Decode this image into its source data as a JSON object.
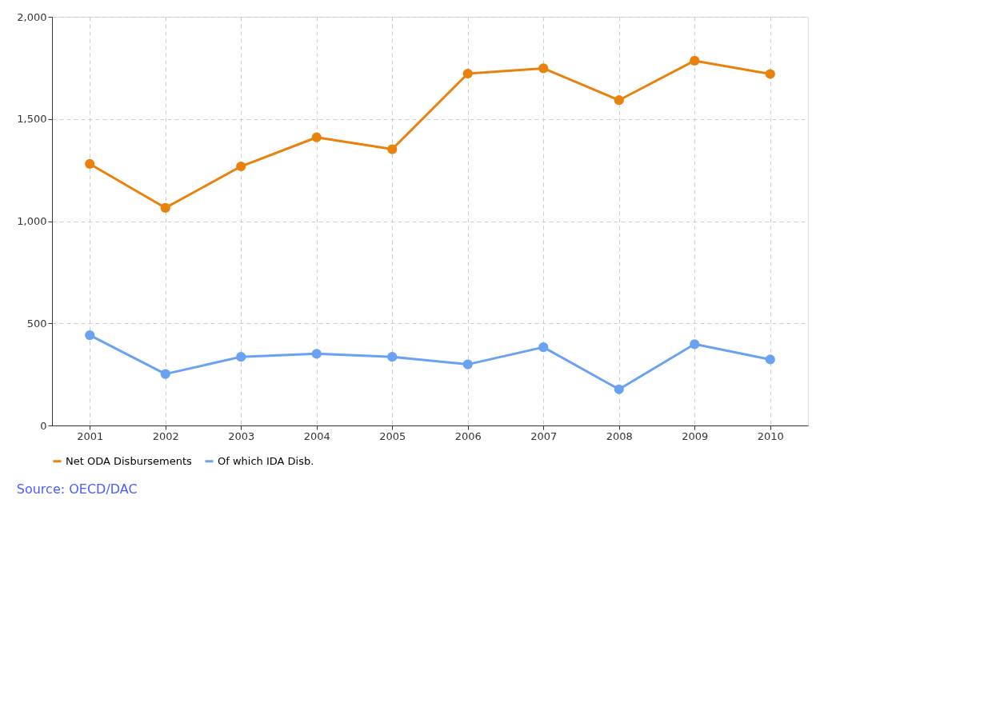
{
  "chart_data": {
    "type": "line",
    "categories": [
      "2001",
      "2002",
      "2003",
      "2004",
      "2005",
      "2006",
      "2007",
      "2008",
      "2009",
      "2010"
    ],
    "series": [
      {
        "name": "Net ODA Disbursements",
        "color": "#e8820c",
        "values": [
          1280,
          1065,
          1268,
          1410,
          1352,
          1722,
          1748,
          1592,
          1785,
          1720
        ]
      },
      {
        "name": "Of which IDA Disb.",
        "color": "#6aa1f0",
        "values": [
          442,
          252,
          336,
          351,
          336,
          299,
          383,
          177,
          398,
          323
        ]
      }
    ],
    "ylim": [
      0,
      2000
    ],
    "yticks": [
      {
        "value": 0,
        "label": "0"
      },
      {
        "value": 500,
        "label": "500"
      },
      {
        "value": 1000,
        "label": "1,000"
      },
      {
        "value": 1500,
        "label": "1,500"
      },
      {
        "value": 2000,
        "label": "2,000"
      }
    ],
    "grid": true,
    "legend": "bottom",
    "marker": "circle",
    "line_style": "solid",
    "annotations": [
      "Source: OECD/DAC"
    ]
  }
}
